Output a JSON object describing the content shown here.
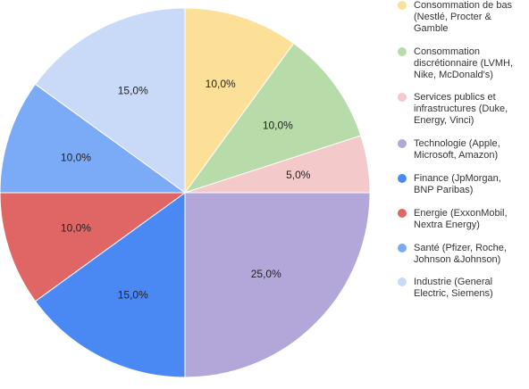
{
  "chart_data": {
    "type": "pie",
    "title": "",
    "start_angle_deg": 0,
    "direction": "clockwise",
    "legend_position": "right",
    "slices": [
      {
        "label": "Consommation de bas (Nestlé, Procter & Gamble",
        "value": 10,
        "value_label": "10,0%",
        "color": "#fce097"
      },
      {
        "label": "Consommation discrétionnaire (LVMH, Nike, McDonald's)",
        "value": 10,
        "value_label": "10,0%",
        "color": "#b7dcaa"
      },
      {
        "label": "Services publics et infrastructures (Duke, Energy, Vinci)",
        "value": 5,
        "value_label": "5,0%",
        "color": "#f3c9c9"
      },
      {
        "label": "Technologie (Apple, Microsoft, Amazon)",
        "value": 25,
        "value_label": "25,0%",
        "color": "#b3a6d8"
      },
      {
        "label": "Finance (JpMorgan, BNP Paribas)",
        "value": 15,
        "value_label": "15,0%",
        "color": "#4a89f3"
      },
      {
        "label": "Energie (ExxonMobil, Nextra Energy)",
        "value": 10,
        "value_label": "10,0%",
        "color": "#e06666"
      },
      {
        "label": "Santé (Pfizer, Roche, Johnson &Johnson)",
        "value": 10,
        "value_label": "10,0%",
        "color": "#7baaf7"
      },
      {
        "label": "Industrie (General Electric, Siemens)",
        "value": 15,
        "value_label": "15,0%",
        "color": "#c9daf8"
      }
    ]
  }
}
